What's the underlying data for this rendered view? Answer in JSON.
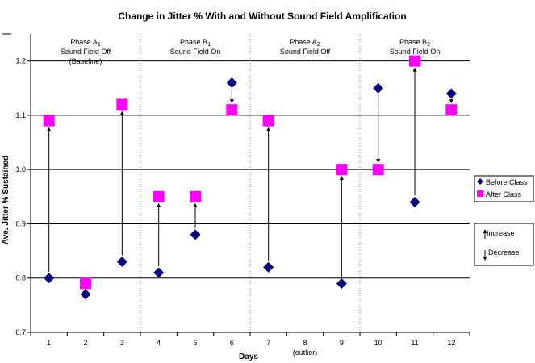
{
  "chart_data": {
    "type": "scatter",
    "title": "Change in Jitter % With and Without Sound Field Amplification",
    "xlabel": "Days",
    "ylabel": "Ave. Jitter % Sustained",
    "ylim": [
      0.7,
      1.25
    ],
    "yticks": [
      "0.7",
      "0.8",
      "0.9",
      "1.0",
      "1.1",
      "1.2"
    ],
    "categories": [
      "1",
      "2",
      "3",
      "4",
      "5",
      "6",
      "7",
      "8",
      "9",
      "10",
      "11",
      "12"
    ],
    "category_notes": [
      {
        "day": "8",
        "text": "(outlier)"
      }
    ],
    "grid": "horizontal",
    "series": [
      {
        "name": "Before Class",
        "color": "#000080",
        "marker": "diamond",
        "values": [
          0.8,
          0.77,
          0.83,
          0.81,
          0.88,
          1.16,
          0.82,
          null,
          0.79,
          1.15,
          0.94,
          1.14
        ]
      },
      {
        "name": "After Class",
        "color": "#FF00FF",
        "marker": "square",
        "values": [
          1.09,
          0.79,
          1.12,
          0.95,
          0.95,
          1.11,
          1.09,
          null,
          1.0,
          1.0,
          1.2,
          1.11
        ]
      }
    ],
    "phases": [
      {
        "lines": [
          "Phase A1",
          "Sound Field Off",
          "(Baseline)"
        ],
        "days": [
          "1",
          "3"
        ]
      },
      {
        "lines": [
          "Phase B1",
          "Sound Field On"
        ],
        "days": [
          "4",
          "6"
        ]
      },
      {
        "lines": [
          "Phase A2",
          "Sound Field Off"
        ],
        "days": [
          "7",
          "9"
        ]
      },
      {
        "lines": [
          "Phase B2",
          "Sound Field On"
        ],
        "days": [
          "10",
          "12"
        ]
      }
    ],
    "arrow_legend": [
      "Increase",
      "Decrease"
    ],
    "legend_position": "right"
  }
}
